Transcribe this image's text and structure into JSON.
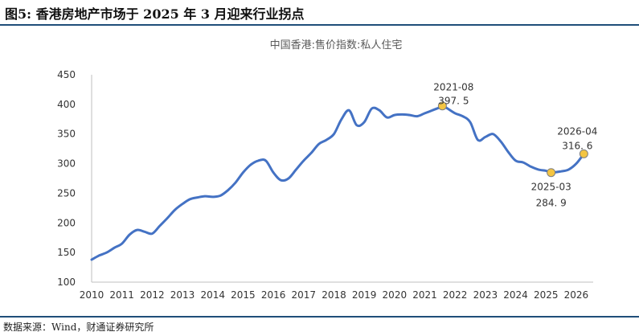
{
  "figure": {
    "title": "图5: 香港房地产市场于 2025 年 3 月迎来行业拐点",
    "source": "数据来源：Wind，财通证券研究所"
  },
  "chart_data": {
    "type": "line",
    "title": "中国香港:售价指数:私人住宅",
    "xlabel": "",
    "ylabel": "",
    "ylim": [
      100,
      450
    ],
    "yticks": [
      100,
      150,
      200,
      250,
      300,
      350,
      400,
      450
    ],
    "xlim": [
      2010,
      2026.4
    ],
    "xticks": [
      "2010",
      "2011",
      "2012",
      "2013",
      "2014",
      "2015",
      "2016",
      "2017",
      "2018",
      "2019",
      "2020",
      "2021",
      "2022",
      "2023",
      "2024",
      "2025",
      "2026"
    ],
    "grid": false,
    "line_color": "#4472c4",
    "marker_color": "#f4c542",
    "series": [
      {
        "x": [
          2010.0,
          2010.25,
          2010.5,
          2010.75,
          2011.0,
          2011.25,
          2011.5,
          2011.75,
          2012.0,
          2012.25,
          2012.5,
          2012.75,
          2013.0,
          2013.25,
          2013.5,
          2013.75,
          2014.0,
          2014.25,
          2014.5,
          2014.75,
          2015.0,
          2015.25,
          2015.5,
          2015.75,
          2016.0,
          2016.25,
          2016.5,
          2016.75,
          2017.0,
          2017.25,
          2017.5,
          2017.75,
          2018.0,
          2018.25,
          2018.5,
          2018.75,
          2019.0,
          2019.25,
          2019.5,
          2019.75,
          2020.0,
          2020.25,
          2020.5,
          2020.75,
          2021.0,
          2021.25,
          2021.5,
          2021.58,
          2021.75,
          2022.0,
          2022.25,
          2022.5,
          2022.75,
          2023.0,
          2023.25,
          2023.5,
          2023.75,
          2024.0,
          2024.25,
          2024.5,
          2024.75,
          2025.0,
          2025.17,
          2025.5,
          2025.75,
          2026.0,
          2026.25
        ],
        "y": [
          138,
          145,
          150,
          158,
          165,
          180,
          188,
          185,
          182,
          195,
          208,
          222,
          232,
          240,
          243,
          245,
          244,
          246,
          255,
          268,
          285,
          298,
          305,
          305,
          285,
          272,
          275,
          290,
          305,
          318,
          333,
          340,
          350,
          375,
          390,
          365,
          370,
          393,
          390,
          378,
          382,
          383,
          382,
          380,
          385,
          390,
          395,
          397.5,
          393,
          385,
          380,
          370,
          340,
          345,
          350,
          338,
          320,
          305,
          302,
          295,
          290,
          288,
          284.9,
          287,
          290,
          300,
          316.6
        ]
      }
    ],
    "annotations": [
      {
        "date": "2021-08",
        "value": "397. 5",
        "x": 2021.58,
        "y": 397.5
      },
      {
        "date": "2025-03",
        "value": "284. 9",
        "x": 2025.17,
        "y": 284.9
      },
      {
        "date": "2026-04",
        "value": "316. 6",
        "x": 2026.25,
        "y": 316.6
      }
    ]
  }
}
